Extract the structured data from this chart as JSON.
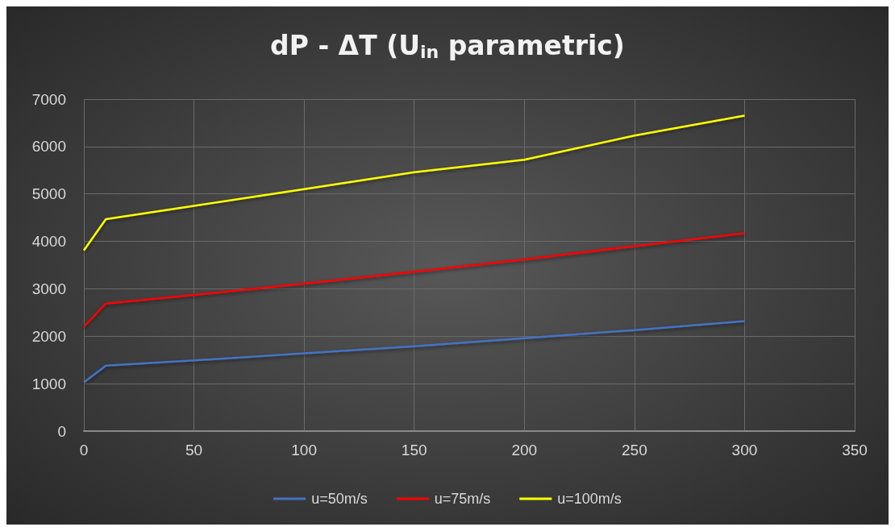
{
  "chart_data": {
    "type": "line",
    "title": "dP - ΔT (U$_{in}$ parametric)",
    "x": [
      0,
      10,
      50,
      100,
      150,
      200,
      250,
      300
    ],
    "series": [
      {
        "name": "u=50m/s",
        "color": "#4472c4",
        "values": [
          1030,
          1380,
          1490,
          1640,
          1790,
          1960,
          2130,
          2320
        ]
      },
      {
        "name": "u=75m/s",
        "color": "#ff0000",
        "values": [
          2200,
          2690,
          2870,
          3110,
          3360,
          3620,
          3900,
          4170
        ]
      },
      {
        "name": "u=100m/s",
        "color": "#ffff00",
        "values": [
          3810,
          4470,
          4750,
          5100,
          5460,
          5720,
          6230,
          6650
        ]
      }
    ],
    "xlim": [
      0,
      350
    ],
    "xticks": [
      0,
      50,
      100,
      150,
      200,
      250,
      300,
      350
    ],
    "ylim": [
      0,
      7000
    ],
    "yticks": [
      0,
      1000,
      2000,
      3000,
      4000,
      5000,
      6000,
      7000
    ],
    "grid": true,
    "legend": "bottom",
    "marker": "none",
    "line_style": "solid"
  }
}
